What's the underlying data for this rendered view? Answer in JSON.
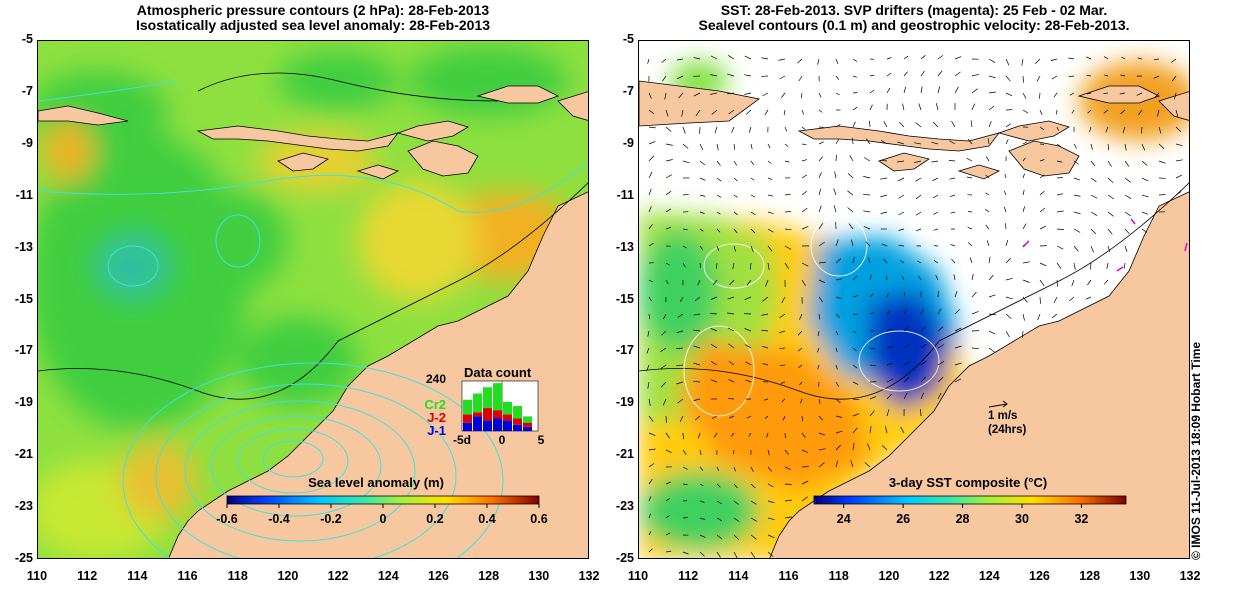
{
  "left_panel": {
    "title_line1": "Atmospheric pressure contours (2 hPa): 28-Feb-2013",
    "title_line2": "Isostatically adjusted sea level anomaly: 28-Feb-2013",
    "colorbar": {
      "label": "Sea level anomaly (m)",
      "ticks": [
        "-0.6",
        "-0.4",
        "-0.2",
        "0",
        "0.2",
        "0.4",
        "0.6"
      ],
      "range": [
        -0.6,
        0.6
      ]
    },
    "data_count": {
      "title": "Data count",
      "max_label": "240",
      "x_ticks": [
        "-5d",
        "0",
        "5"
      ],
      "legend": [
        {
          "label": "Cr2",
          "color": "#22dd22"
        },
        {
          "label": "J-2",
          "color": "#dd0000"
        },
        {
          "label": "J-1",
          "color": "#0000dd"
        }
      ],
      "bars": [
        {
          "j1": 40,
          "j2": 40,
          "cr2": 70
        },
        {
          "j1": 70,
          "j2": 20,
          "cr2": 90
        },
        {
          "j1": 50,
          "j2": 60,
          "cr2": 100
        },
        {
          "j1": 60,
          "j2": 40,
          "cr2": 130
        },
        {
          "j1": 50,
          "j2": 30,
          "cr2": 60
        },
        {
          "j1": 30,
          "j2": 30,
          "cr2": 60
        },
        {
          "j1": 20,
          "j2": 20,
          "cr2": 30
        }
      ]
    }
  },
  "right_panel": {
    "title_line1": "SST: 28-Feb-2013. SVP drifters (magenta): 25 Feb - 02 Mar.",
    "title_line2": "Sealevel contours (0.1 m) and geostrophic velocity: 28-Feb-2013.",
    "colorbar": {
      "label": "3-day SST composite (°C)",
      "ticks": [
        "24",
        "26",
        "28",
        "30",
        "32"
      ],
      "range": [
        23,
        33.5
      ]
    },
    "velocity_scale": {
      "line1": "1 m/s",
      "line2": "(24hrs)"
    }
  },
  "axes": {
    "lat_labels": [
      "-5",
      "-7",
      "-9",
      "-11",
      "-13",
      "-15",
      "-17",
      "-19",
      "-21",
      "-23",
      "-25"
    ],
    "lon_labels": [
      "110",
      "112",
      "114",
      "116",
      "118",
      "120",
      "122",
      "124",
      "126",
      "128",
      "130",
      "132"
    ],
    "lat_range": [
      -25,
      -5
    ],
    "lon_range": [
      110,
      132
    ]
  },
  "credit": "© IMOS 11-Jul-2013 18:09 Hobart Time",
  "colors": {
    "land": "#f7c8a0",
    "ocean_green": "#3fce3f",
    "ocean_yellow": "#c8e832",
    "ocean_orange": "#f2b020",
    "contour_cyan": "#40e0e0",
    "drifter_magenta": "#dd00dd"
  }
}
